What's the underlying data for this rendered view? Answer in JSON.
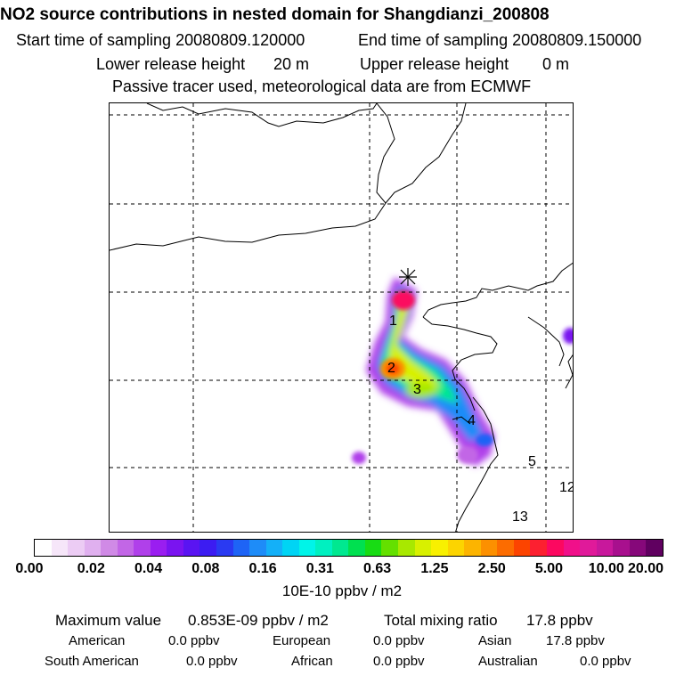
{
  "header": {
    "title": "NO2 source contributions in nested domain for Shangdianzi_200808",
    "start_label": "Start time of sampling 20080809.120000",
    "end_label": "End time of sampling 20080809.150000",
    "lower_label": "Lower release height",
    "lower_value": "20 m",
    "upper_label": "Upper release height",
    "upper_value": "0 m",
    "tracer_note": "Passive tracer used, meteorological data are from ECMWF"
  },
  "map": {
    "region_labels": [
      "1",
      "2",
      "3",
      "4",
      "5",
      "12",
      "13"
    ]
  },
  "colorbar": {
    "colors": [
      "#ffffff",
      "#f6e6f9",
      "#ecccf4",
      "#e0b0ef",
      "#d08ae6",
      "#c266e6",
      "#b040ea",
      "#9a1ef0",
      "#7a14f0",
      "#5a14f2",
      "#3c1cf2",
      "#2a3af2",
      "#1e64f6",
      "#1e8cf8",
      "#14b0f8",
      "#00d4f4",
      "#00f4e8",
      "#00f0c0",
      "#00e890",
      "#00e050",
      "#18dc14",
      "#64e000",
      "#a8e800",
      "#d8f000",
      "#f8f000",
      "#fcd400",
      "#fcb400",
      "#fc9000",
      "#fc6c00",
      "#fc4400",
      "#fc2030",
      "#fc0860",
      "#f0108a",
      "#e01a9a",
      "#c8189c",
      "#a8108e",
      "#86087a",
      "#600060"
    ],
    "ticks": [
      "0.00",
      "0.02",
      "0.04",
      "0.08",
      "0.16",
      "0.31",
      "0.63",
      "1.25",
      "2.50",
      "5.00",
      "10.00",
      "20.00"
    ],
    "unit": "10E-10 ppbv / m2"
  },
  "footer": {
    "max_label": "Maximum value",
    "max_value": "0.853E-09 ppbv / m2",
    "total_label": "Total mixing ratio",
    "total_value": "17.8 ppbv",
    "american_label": "American",
    "american_value": "0.0 ppbv",
    "european_label": "European",
    "european_value": "0.0 ppbv",
    "asian_label": "Asian",
    "asian_value": "17.8 ppbv",
    "samerican_label": "South American",
    "samerican_value": "0.0 ppbv",
    "african_label": "African",
    "african_value": "0.0 ppbv",
    "australian_label": "Australian",
    "australian_value": "0.0 ppbv"
  }
}
